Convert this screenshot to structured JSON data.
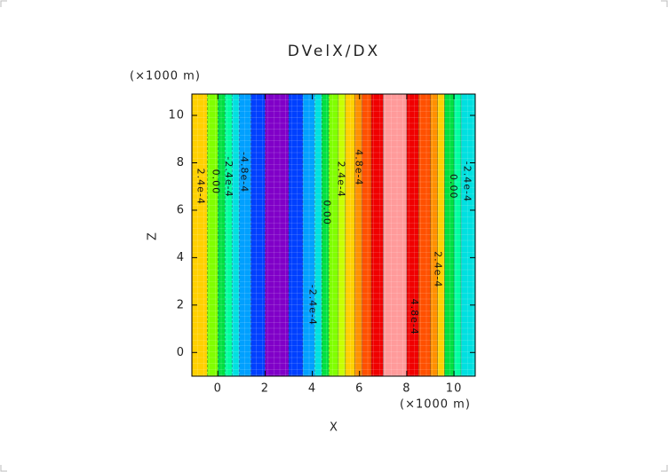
{
  "chart_data": {
    "type": "contour",
    "title": "DVelX/DX",
    "x_label": "X",
    "y_label": "Z",
    "x_unit": "(×1000 m)",
    "y_unit": "(×1000 m)",
    "xlim": [
      -1.1,
      10.9
    ],
    "ylim": [
      -1,
      10.9
    ],
    "xticks": [
      0,
      2,
      4,
      6,
      8,
      10
    ],
    "yticks": [
      0,
      2,
      4,
      6,
      8,
      10
    ],
    "band_edges": [
      -1.1,
      -0.45,
      0.0,
      0.3,
      0.6,
      0.9,
      1.4,
      2.0,
      3.0,
      3.6,
      4.1,
      4.4,
      4.7,
      5.1,
      5.4,
      5.8,
      6.1,
      6.5,
      7.0,
      8.0,
      8.5,
      9.0,
      9.3,
      9.6,
      10.0,
      10.3,
      10.9
    ],
    "band_colors": [
      "#ffd000",
      "#80ff00",
      "#00e040",
      "#00ffa0",
      "#00e0e0",
      "#00a0ff",
      "#0040ff",
      "#8000c8",
      "#0040ff",
      "#00a0ff",
      "#00e0e0",
      "#00e040",
      "#80ff00",
      "#c8ff00",
      "#ffd000",
      "#ff9000",
      "#ff5000",
      "#f00000",
      "#ff9a9a",
      "#f00000",
      "#ff5000",
      "#ff9000",
      "#ffd000",
      "#00e040",
      "#00ffa0",
      "#00e0e0"
    ],
    "contour_labels": [
      {
        "label": "2.4e-4",
        "x": -0.75,
        "z": 7.0
      },
      {
        "label": "0.00",
        "x": -0.1,
        "z": 7.2
      },
      {
        "label": "-2.4e-4",
        "x": 0.45,
        "z": 7.4
      },
      {
        "label": "-4.8e-4",
        "x": 1.1,
        "z": 7.6
      },
      {
        "label": "-2.4e-4",
        "x": 4.0,
        "z": 2.0
      },
      {
        "label": "0.00",
        "x": 4.6,
        "z": 5.9
      },
      {
        "label": "2.4e-4",
        "x": 5.2,
        "z": 7.3
      },
      {
        "label": "4.8e-4",
        "x": 5.95,
        "z": 7.8
      },
      {
        "label": "4.8e-4",
        "x": 8.3,
        "z": 1.5
      },
      {
        "label": "2.4e-4",
        "x": 9.3,
        "z": 3.5
      },
      {
        "label": "0.00",
        "x": 9.95,
        "z": 7.0
      },
      {
        "label": "-2.4e-4",
        "x": 10.55,
        "z": 7.2
      }
    ]
  }
}
